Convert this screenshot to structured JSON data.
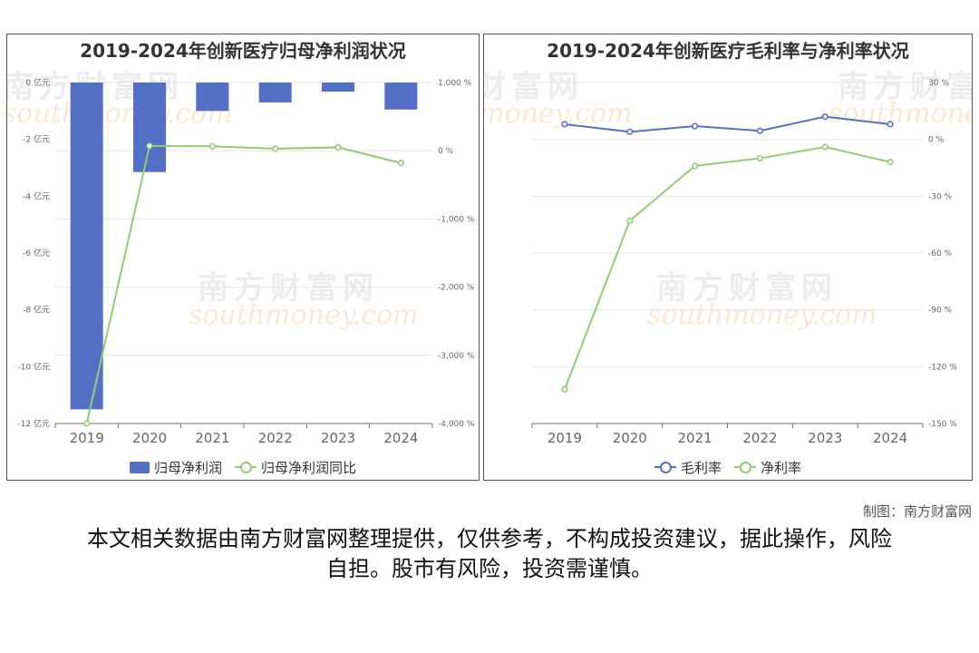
{
  "watermark": {
    "cn": "南方财富网",
    "en": "southmoney.com"
  },
  "chart_data": [
    {
      "type": "bar",
      "title": "2019-2024年创新医疗归母净利润状况",
      "categories": [
        "2019",
        "2020",
        "2021",
        "2022",
        "2023",
        "2024"
      ],
      "series": [
        {
          "name": "归母净利润",
          "kind": "bar",
          "axis": "left",
          "color": "#5470c6",
          "values": [
            -11.5,
            -3.15,
            -1.0,
            -0.7,
            -0.32,
            -0.95
          ]
        },
        {
          "name": "归母净利润同比",
          "kind": "line",
          "axis": "right",
          "color": "#91cc75",
          "values": [
            -4000,
            70,
            65,
            30,
            50,
            -180
          ]
        }
      ],
      "y_left": {
        "min": -12,
        "max": 0,
        "ticks": [
          0,
          -2,
          -4,
          -6,
          -8,
          -10,
          -12
        ],
        "tick_labels": [
          "0 亿元",
          "-2 亿元",
          "-4 亿元",
          "-6 亿元",
          "-8 亿元",
          "-10 亿元",
          "-12 亿元"
        ]
      },
      "y_right": {
        "min": -4000,
        "max": 1000,
        "ticks": [
          1000,
          0,
          -1000,
          -2000,
          -3000,
          -4000
        ],
        "tick_labels": [
          "1,000 %",
          "0 %",
          "-1,000 %",
          "-2,000 %",
          "-3,000 %",
          "-4,000 %"
        ]
      },
      "grid": true,
      "legend": "bottom-center"
    },
    {
      "type": "line",
      "title": "2019-2024年创新医疗毛利率与净利率状况",
      "categories": [
        "2019",
        "2020",
        "2021",
        "2022",
        "2023",
        "2024"
      ],
      "series": [
        {
          "name": "毛利率",
          "kind": "line",
          "axis": "right",
          "color": "#5470c6",
          "values": [
            8,
            4,
            7,
            4.5,
            12,
            8
          ]
        },
        {
          "name": "净利率",
          "kind": "line",
          "axis": "right",
          "color": "#91cc75",
          "values": [
            -132,
            -43,
            -14,
            -10,
            -4,
            -12
          ]
        }
      ],
      "y_right": {
        "min": -150,
        "max": 30,
        "ticks": [
          30,
          0,
          -30,
          -60,
          -90,
          -120,
          -150
        ],
        "tick_labels": [
          "30 %",
          "0 %",
          "-30 %",
          "-60 %",
          "-90 %",
          "-120 %",
          "-150 %"
        ]
      },
      "grid": true,
      "legend": "bottom-center"
    }
  ],
  "footer": {
    "credit": "制图：南方财富网",
    "disclaimer": "本文相关数据由南方财富网整理提供，仅供参考，不构成投资建议，据此操作，风险自担。股市有风险，投资需谨慎。"
  }
}
